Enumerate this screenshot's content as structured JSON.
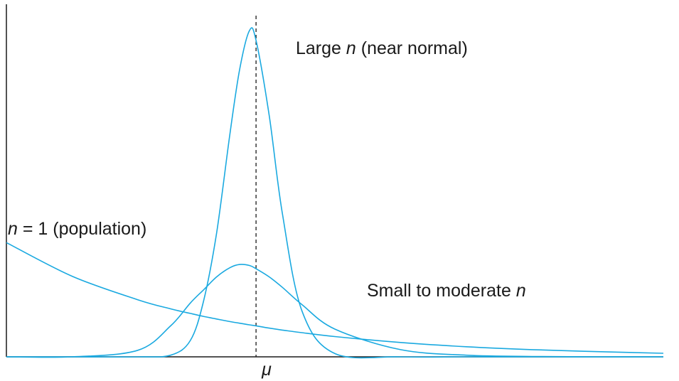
{
  "chart_data": {
    "type": "line",
    "title": "",
    "xlabel": "",
    "ylabel": "",
    "x_tick_labels": [
      "μ"
    ],
    "grid": false,
    "legend": "none",
    "x": [
      0.0,
      1.0,
      2.0,
      2.5,
      2.8,
      3.0,
      3.2,
      3.4,
      3.55,
      3.7,
      3.8,
      4.0,
      4.2,
      4.5,
      5.0,
      6.0,
      7.0,
      8.0,
      9.0,
      10.0
    ],
    "series": [
      {
        "id": "population",
        "color": "#1aa9e0",
        "values": [
          0.35,
          0.247,
          0.175,
          0.147,
          0.133,
          0.124,
          0.116,
          0.108,
          0.103,
          0.098,
          0.095,
          0.088,
          0.082,
          0.074,
          0.062,
          0.044,
          0.031,
          0.022,
          0.016,
          0.011
        ]
      },
      {
        "id": "small-to-moderate",
        "color": "#1aa9e0",
        "values": [
          0.0,
          0.0,
          0.02,
          0.095,
          0.165,
          0.205,
          0.245,
          0.273,
          0.283,
          0.28,
          0.27,
          0.245,
          0.213,
          0.16,
          0.085,
          0.022,
          0.005,
          0.001,
          0.0,
          0.0
        ]
      },
      {
        "id": "large-n",
        "color": "#1aa9e0",
        "values": [
          0.0,
          0.0,
          0.0,
          0.005,
          0.05,
          0.17,
          0.38,
          0.68,
          0.88,
          1.0,
          0.97,
          0.74,
          0.44,
          0.14,
          0.01,
          0.0,
          0.0,
          0.0,
          0.0,
          0.0
        ]
      }
    ],
    "mean_x": 3.8,
    "xlim": [
      0,
      10
    ],
    "ylim": [
      0,
      1.05
    ],
    "annotations": {
      "large": {
        "italic": "n",
        "rest": " (near normal)",
        "prefix": "Large "
      },
      "small": {
        "prefix": "Small to moderate ",
        "italic": "n"
      },
      "pop": {
        "italic": "n",
        "rest": " = 1 (population)"
      },
      "mu": "μ"
    }
  }
}
